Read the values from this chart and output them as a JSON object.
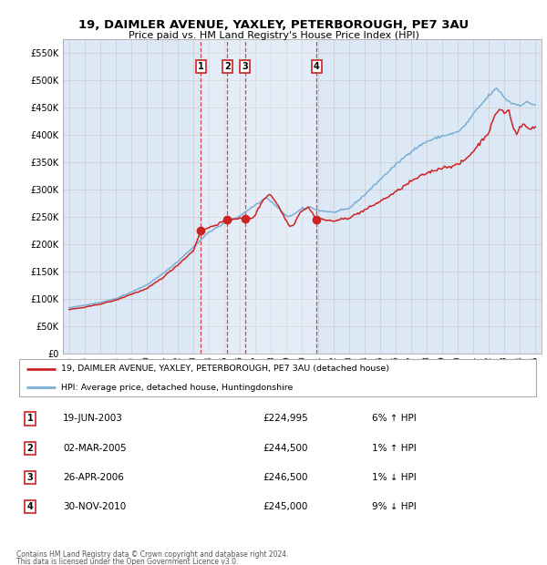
{
  "title": "19, DAIMLER AVENUE, YAXLEY, PETERBOROUGH, PE7 3AU",
  "subtitle": "Price paid vs. HM Land Registry's House Price Index (HPI)",
  "legend_house": "19, DAIMLER AVENUE, YAXLEY, PETERBOROUGH, PE7 3AU (detached house)",
  "legend_hpi": "HPI: Average price, detached house, Huntingdonshire",
  "footer1": "Contains HM Land Registry data © Crown copyright and database right 2024.",
  "footer2": "This data is licensed under the Open Government Licence v3.0.",
  "sales": [
    {
      "num": 1,
      "date": "19-JUN-2003",
      "price": 224995,
      "pct": "6%",
      "dir": "↑"
    },
    {
      "num": 2,
      "date": "02-MAR-2005",
      "price": 244500,
      "pct": "1%",
      "dir": "↑"
    },
    {
      "num": 3,
      "date": "26-APR-2006",
      "price": 246500,
      "pct": "1%",
      "dir": "↓"
    },
    {
      "num": 4,
      "date": "30-NOV-2010",
      "price": 245000,
      "pct": "9%",
      "dir": "↓"
    }
  ],
  "sale_dates_decimal": [
    2003.47,
    2005.17,
    2006.32,
    2010.92
  ],
  "sale_prices": [
    224995,
    244500,
    246500,
    245000
  ],
  "hpi_color": "#7bafd4",
  "house_color": "#cc2222",
  "vline_color": "#cc3333",
  "shade_color": "#dce8f5",
  "grid_color": "#cccccc",
  "bg_color": "#dce8f5",
  "ylim": [
    0,
    575000
  ],
  "yticks": [
    0,
    50000,
    100000,
    150000,
    200000,
    250000,
    300000,
    350000,
    400000,
    450000,
    500000,
    550000
  ],
  "xlim_start": 1994.6,
  "xlim_end": 2025.4
}
